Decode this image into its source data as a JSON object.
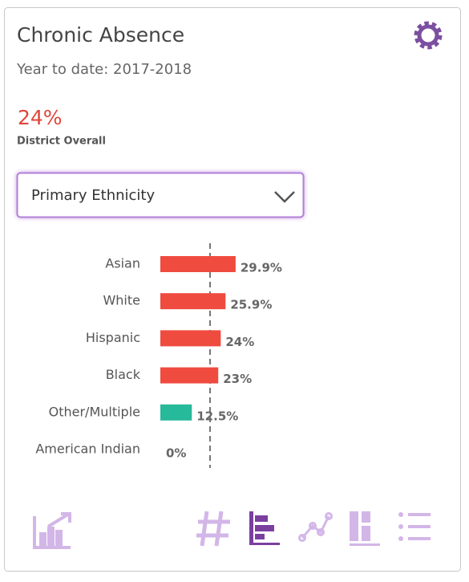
{
  "chart_data": {
    "type": "hbar",
    "title": "Chronic Absence",
    "subtitle": "Year to date: 2017-2018",
    "categories": [
      "Asian",
      "White",
      "Hispanic",
      "Black",
      "Other/Multiple",
      "American Indian"
    ],
    "values": [
      29.9,
      25.9,
      24,
      23,
      12.5,
      0
    ],
    "value_labels": [
      "29.9%",
      "25.9%",
      "24%",
      "23%",
      "12.5%",
      "0%"
    ],
    "colors": [
      "#ef4b3f",
      "#ef4b3f",
      "#ef4b3f",
      "#ef4b3f",
      "#26b99a",
      "#ef4b3f"
    ],
    "xlim": [
      0,
      100
    ]
  },
  "summary": {
    "value": "24%",
    "label": "District Overall"
  },
  "dropdown": {
    "selected": "Primary Ethnicity"
  }
}
